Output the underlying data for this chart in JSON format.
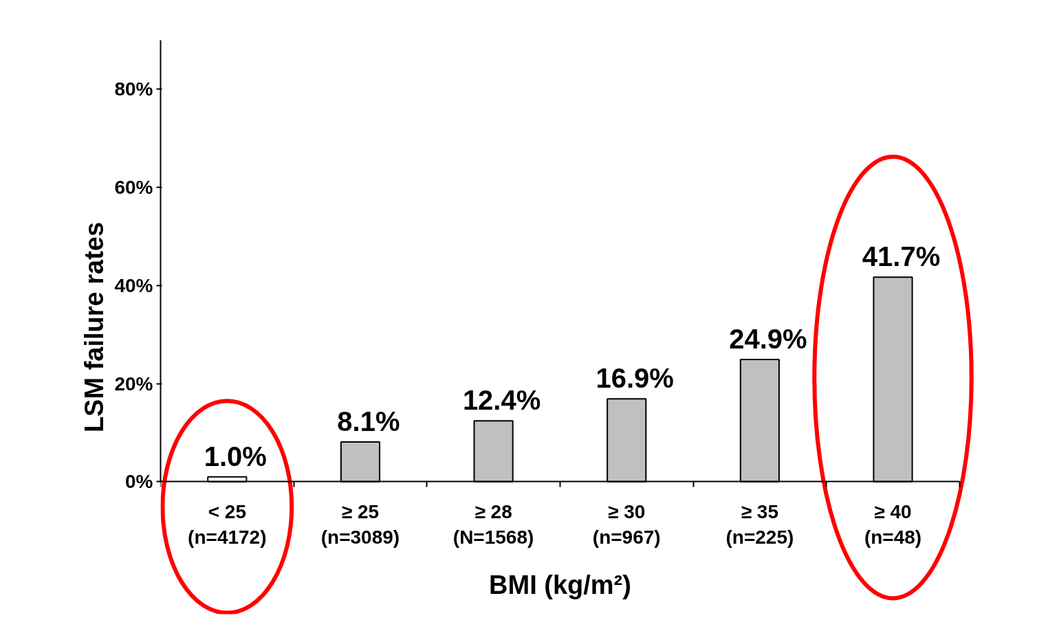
{
  "chart_data": {
    "type": "bar",
    "xlabel": "BMI (kg/m²)",
    "ylabel": "LSM failure rates",
    "categories": [
      "< 25\n(n=4172)",
      "≥ 25\n(n=3089)",
      "≥ 28\n(N=1568)",
      "≥ 30\n(n=967)",
      "≥ 35\n(n=225)",
      "≥ 40\n(n=48)"
    ],
    "values": [
      1.0,
      8.1,
      12.4,
      16.9,
      24.9,
      41.7
    ],
    "colors": [
      "#ffffff",
      "#c0c0c0",
      "#c0c0c0",
      "#c0c0c0",
      "#c0c0c0",
      "#c0c0c0"
    ],
    "value_labels": [
      "1.0%",
      "8.1%",
      "12.4%",
      "16.9%",
      "24.9%",
      "41.7%"
    ],
    "ylim": [
      0,
      90
    ],
    "yticks": [
      {
        "value": 0,
        "label": "0%"
      },
      {
        "value": 20,
        "label": "20%"
      },
      {
        "value": 40,
        "label": "40%"
      },
      {
        "value": 60,
        "label": "60%"
      },
      {
        "value": 80,
        "label": "80%"
      }
    ],
    "grid": false
  }
}
